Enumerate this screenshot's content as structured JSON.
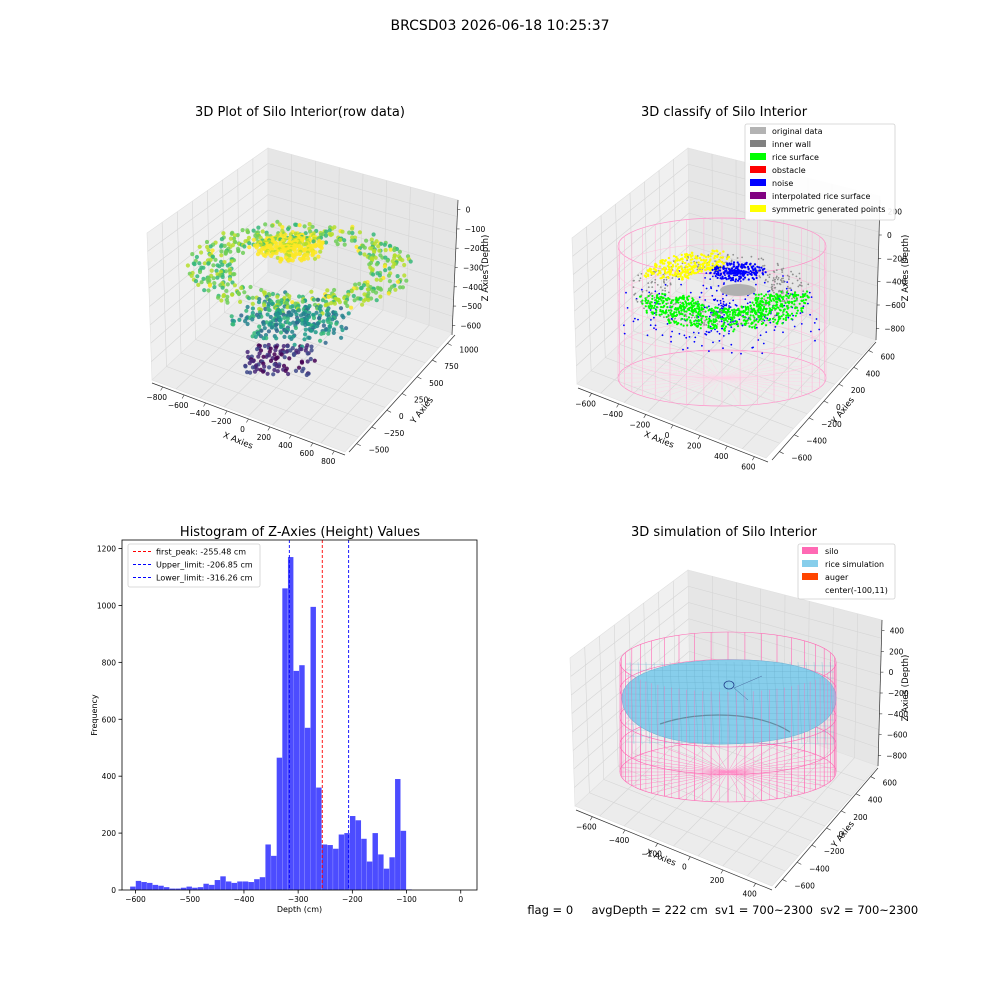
{
  "suptitle": "BRCSD03 2026-06-18 10:25:37",
  "status": {
    "flag": "flag = 0",
    "avg_depth": "avgDepth = 222 cm",
    "sv1": "sv1 = 700~2300",
    "sv2": "sv2 = 700~2300"
  },
  "colors": {
    "original": "#b3b3b3",
    "inner_wall": "#808080",
    "rice_surface": "#00ff00",
    "obstacle": "#ff0000",
    "noise": "#0000ff",
    "interpolated": "#800080",
    "symmetric": "#ffff00",
    "silo": "#ff69b4",
    "rice_sim": "#87ceeb",
    "auger": "#ff4500",
    "hist_bar": "#0000ff"
  },
  "chart_data": [
    {
      "type": "scatter",
      "subtype": "3d",
      "title": "3D Plot of Silo Interior(row data)",
      "xlabel": "X Axies",
      "ylabel": "Y Axies",
      "zlabel": "Z Axies (Depth)",
      "xticks": [
        "−800",
        "−600",
        "−400",
        "−200",
        "0",
        "200",
        "400",
        "600",
        "800"
      ],
      "yticks": [
        "−500",
        "−250",
        "0",
        "250",
        "500",
        "750",
        "1000"
      ],
      "zticks": [
        "0",
        "−100",
        "−200",
        "−300",
        "−400",
        "−500",
        "−600"
      ],
      "colormap": "viridis",
      "zlim": [
        -620,
        0
      ]
    },
    {
      "type": "scatter",
      "subtype": "3d",
      "title": "3D classify of Silo Interior",
      "xlabel": "X Axies",
      "ylabel": "Y Axies",
      "zlabel": "Z Axies (Depth)",
      "xticks": [
        "−600",
        "−400",
        "−200",
        "0",
        "200",
        "400",
        "600"
      ],
      "yticks": [
        "−600",
        "−400",
        "−200",
        "0",
        "200",
        "400",
        "600"
      ],
      "zticks": [
        "200",
        "0",
        "−200",
        "−400",
        "−600",
        "−800"
      ],
      "legend_position": "top-right",
      "legend": [
        "original data",
        "inner wall",
        "rice surface",
        "obstacle",
        "noise",
        "interpolated rice surface",
        "symmetric generated points"
      ]
    },
    {
      "type": "bar",
      "subtype": "histogram",
      "title": "Histogram of Z-Axies (Height) Values",
      "xlabel": "Depth (cm)",
      "ylabel": "Frequency",
      "xlim": [
        -625,
        30
      ],
      "ylim": [
        0,
        1230
      ],
      "xticks": [
        -600,
        -500,
        -400,
        -300,
        -200,
        -100,
        0
      ],
      "xtick_labels": [
        "−600",
        "−500",
        "−400",
        "−300",
        "−200",
        "−100",
        "0"
      ],
      "yticks": [
        0,
        200,
        400,
        600,
        800,
        1000,
        1200
      ],
      "bin_start": -610,
      "bin_width": 10.4,
      "values": [
        12,
        32,
        28,
        25,
        18,
        15,
        10,
        5,
        5,
        8,
        12,
        8,
        10,
        22,
        18,
        35,
        48,
        30,
        25,
        30,
        30,
        28,
        38,
        45,
        160,
        120,
        465,
        1060,
        1170,
        770,
        790,
        570,
        995,
        360,
        160,
        158,
        145,
        195,
        200,
        260,
        245,
        180,
        100,
        200,
        125,
        75,
        115,
        390,
        208,
        2
      ],
      "legend_position": "top-left",
      "series": [
        {
          "name": "first_peak: -255.48 cm",
          "x": -255.48,
          "color": "#ff0000",
          "style": "dashed"
        },
        {
          "name": "Upper_limit: -206.85 cm",
          "x": -206.85,
          "color": "#0000ff",
          "style": "dashed"
        },
        {
          "name": "Lower_limit: -316.26 cm",
          "x": -316.26,
          "color": "#0000ff",
          "style": "dashed"
        }
      ]
    },
    {
      "type": "area",
      "subtype": "3d-surface",
      "title": "3D simulation of Silo Interior",
      "xlabel": "X Axies",
      "ylabel": "Y Axies",
      "zlabel": "Z Axies (Depth)",
      "xticks": [
        "−600",
        "−400",
        "−200",
        "0",
        "200",
        "400"
      ],
      "yticks": [
        "−600",
        "−400",
        "−200",
        "0",
        "200",
        "400",
        "600"
      ],
      "zticks": [
        "400",
        "200",
        "0",
        "−200",
        "−400",
        "−600",
        "−800"
      ],
      "legend_position": "top-right",
      "legend": [
        "silo",
        "rice simulation",
        "auger",
        "center(-100,11)"
      ]
    }
  ]
}
